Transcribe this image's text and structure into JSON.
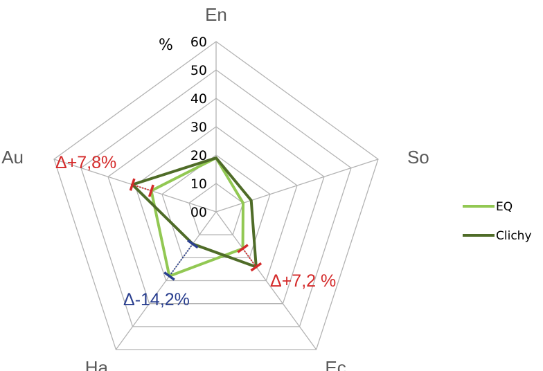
{
  "chart_data": {
    "type": "radar",
    "axes": [
      "En",
      "So",
      "Ec",
      "Ha",
      "Au"
    ],
    "range": [
      0,
      60
    ],
    "ticks": [
      "00",
      "10",
      "20",
      "30",
      "40",
      "50",
      "60"
    ],
    "unit": "%",
    "series": [
      {
        "name": "EQ",
        "values": [
          19,
          10,
          16,
          28,
          24
        ],
        "color": "#92c853"
      },
      {
        "name": "Clichy",
        "values": [
          19,
          13,
          24,
          14,
          31
        ],
        "color": "#4f6c28"
      }
    ],
    "annotations": [
      {
        "text": "Δ+7,8%",
        "axis": "Au",
        "color": "#d42a2a"
      },
      {
        "text": "Δ+7,2 %",
        "axis": "Ec",
        "color": "#d42a2a"
      },
      {
        "text": "Δ-14,2%",
        "axis": "Ha",
        "color": "#2a3f8f"
      }
    ],
    "legend_position": "right",
    "grid": true
  }
}
